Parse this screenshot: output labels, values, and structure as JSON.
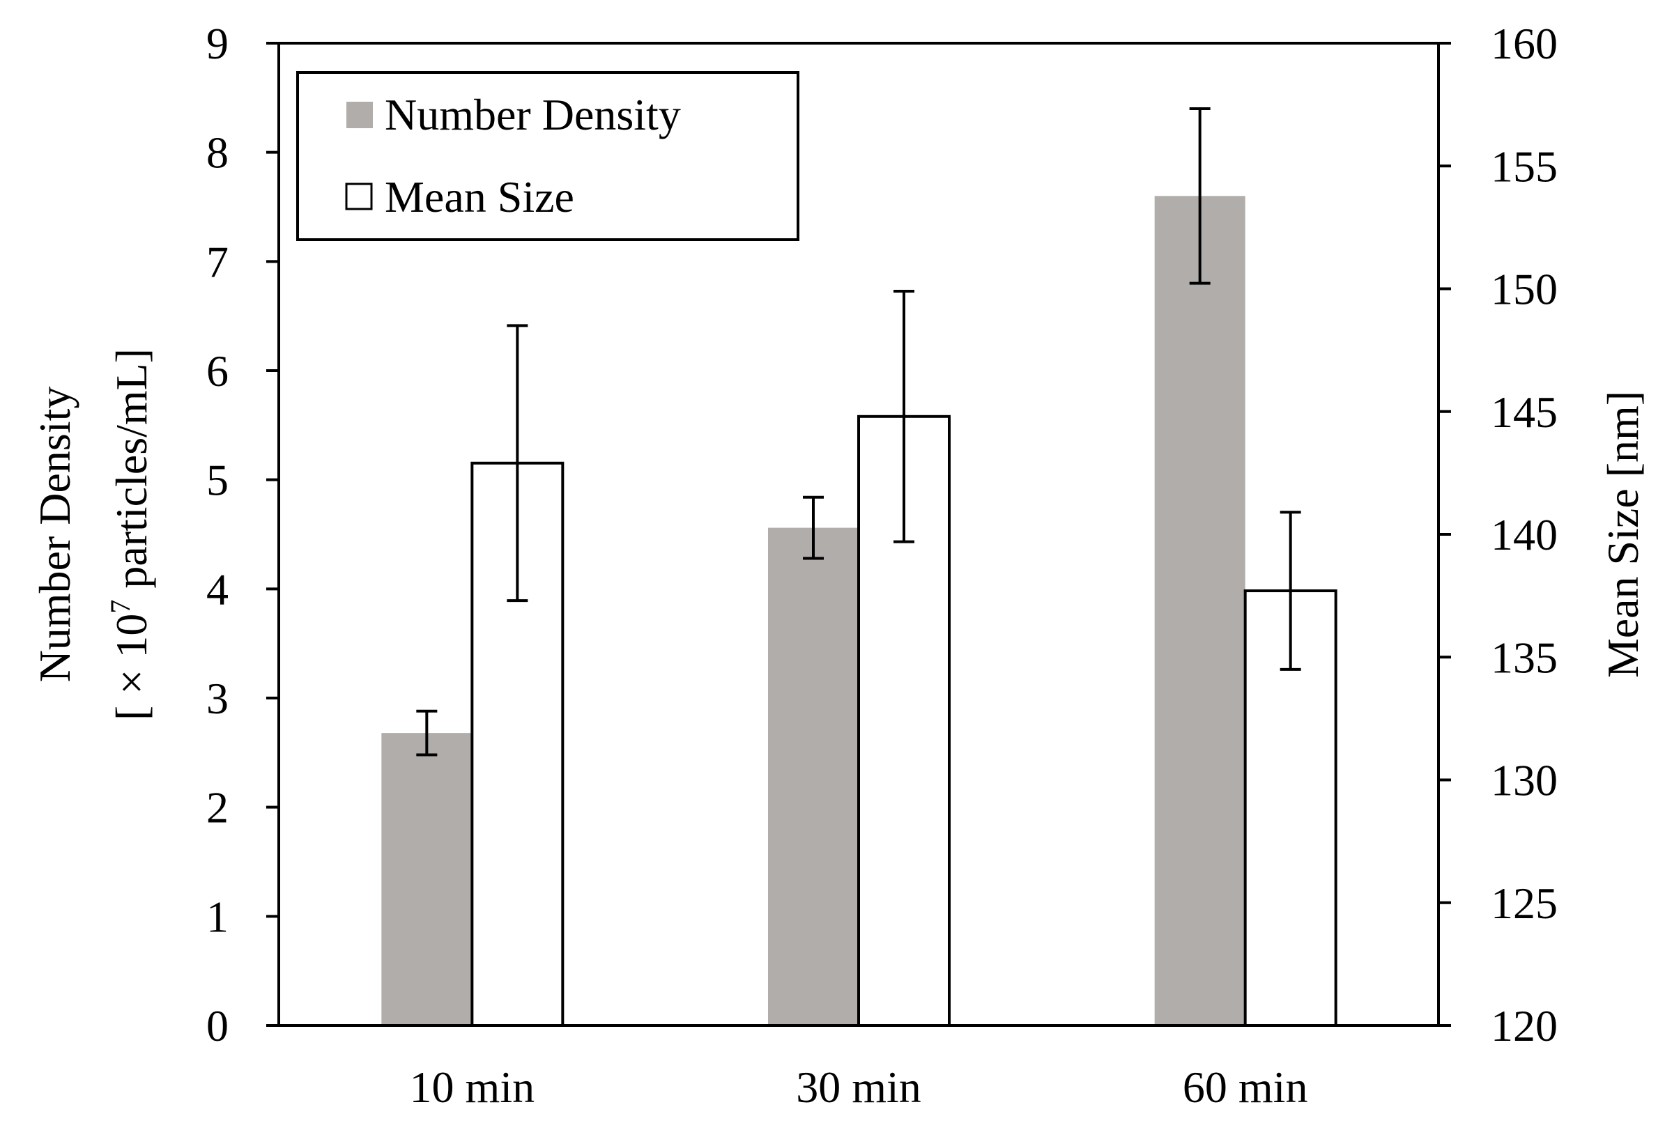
{
  "chart_data": {
    "type": "bar",
    "categories": [
      "10 min",
      "30 min",
      "60 min"
    ],
    "series": [
      {
        "name": "Number Density",
        "axis": "left",
        "values": [
          2.68,
          4.56,
          7.6
        ],
        "errors": [
          0.2,
          0.28,
          0.8
        ],
        "color": "#b0adab"
      },
      {
        "name": "Mean Size",
        "axis": "right",
        "values": [
          142.9,
          144.8,
          137.7
        ],
        "errors": [
          5.6,
          5.1,
          3.2
        ],
        "color": "#ffffff"
      }
    ],
    "y_left": {
      "label_line1": "Number Density",
      "label_line2_prefix": "[ × 10",
      "label_line2_sup": "7",
      "label_line2_suffix": " particles/mL]",
      "range": [
        0,
        9
      ],
      "ticks": [
        "0",
        "1",
        "2",
        "3",
        "4",
        "5",
        "6",
        "7",
        "8",
        "9"
      ]
    },
    "y_right": {
      "label": "Mean Size [nm]",
      "range": [
        120,
        160
      ],
      "ticks": [
        "120",
        "125",
        "130",
        "135",
        "140",
        "145",
        "150",
        "155",
        "160"
      ]
    },
    "legend": {
      "position": "top-left",
      "entries": [
        "Number Density",
        "Mean Size"
      ]
    }
  }
}
